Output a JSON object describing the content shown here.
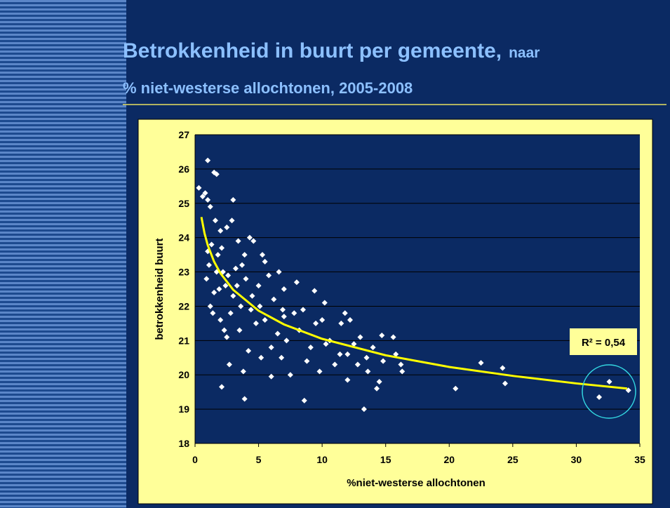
{
  "chart_data": {
    "type": "scatter",
    "title": "Betrokkenheid in buurt per gemeente,",
    "title_suffix": "naar",
    "subtitle": "% niet-westerse allochtonen, 2005-2008",
    "x_label": "%niet-westerse allochtonen",
    "y_label": "betrokkenheid buurt",
    "annotation": "R² = 0,54",
    "xlim": [
      0,
      35
    ],
    "xticks": [
      0,
      5,
      10,
      15,
      20,
      25,
      30,
      35
    ],
    "ylim": [
      18,
      27
    ],
    "yticks": [
      18,
      19,
      20,
      21,
      22,
      23,
      24,
      25,
      26,
      27
    ],
    "grid": true,
    "series": [
      {
        "color": "#ffffff",
        "x": [
          1.0,
          1.5,
          1.7,
          0.3,
          0.6,
          0.8,
          1.0,
          3.0,
          1.2,
          2.1,
          3.9,
          8.6,
          13.3,
          20.5,
          22.5,
          24.2,
          24.4,
          31.8,
          32.6,
          34.1,
          15.6,
          14.7,
          16.2,
          15.8,
          14.5,
          14.3,
          12.0,
          13.5,
          11.5,
          11.8,
          12.2,
          9.4,
          10.2,
          8.0,
          7.0,
          6.6,
          5.5,
          4.6,
          4.3,
          3.4,
          3.9,
          2.9,
          2.5,
          2.0,
          1.6,
          1.8,
          1.3,
          1.1,
          0.9,
          1.5,
          1.2,
          2.0,
          2.5,
          2.8,
          3.0,
          3.5,
          3.8,
          2.7,
          4.2,
          4.8,
          5.1,
          5.5,
          6.0,
          6.5,
          6.8,
          7.2,
          7.5,
          7.8,
          8.2,
          8.8,
          9.1,
          9.5,
          9.8,
          10.3,
          10.6,
          11.0,
          11.4,
          12.0,
          12.5,
          12.8,
          13.0,
          13.6,
          14.0,
          14.8,
          16.3,
          2.2,
          2.4,
          1.7,
          3.2,
          4.0,
          4.5,
          5.0,
          5.8,
          6.2,
          7.0,
          1.4,
          2.3,
          3.6,
          4.4,
          8.5,
          10.0,
          5.2,
          6.0,
          1.9,
          2.6,
          3.3,
          1.0,
          2.1,
          3.7,
          5.3,
          6.9
        ],
        "values": [
          26.25,
          25.9,
          25.85,
          25.45,
          25.2,
          25.3,
          25.1,
          25.1,
          24.9,
          19.65,
          19.3,
          19.25,
          19.0,
          19.6,
          20.35,
          20.2,
          19.75,
          19.35,
          19.8,
          19.55,
          21.1,
          21.15,
          20.3,
          20.6,
          19.8,
          19.6,
          19.85,
          20.5,
          21.5,
          21.8,
          21.6,
          22.45,
          22.1,
          22.7,
          22.5,
          23.0,
          23.3,
          23.9,
          24.0,
          23.9,
          23.5,
          24.5,
          24.3,
          24.2,
          24.5,
          23.5,
          23.8,
          23.2,
          22.8,
          22.4,
          22.0,
          21.6,
          21.1,
          21.8,
          22.3,
          21.3,
          20.1,
          20.3,
          20.7,
          21.5,
          22.0,
          21.6,
          20.8,
          21.2,
          20.5,
          21.0,
          20.0,
          21.8,
          21.3,
          20.4,
          20.8,
          21.5,
          20.1,
          20.9,
          21.0,
          20.3,
          20.6,
          20.6,
          20.9,
          20.3,
          21.1,
          20.1,
          20.8,
          20.4,
          20.1,
          23.0,
          22.6,
          23.0,
          23.1,
          22.8,
          22.3,
          22.6,
          22.9,
          22.2,
          21.7,
          21.8,
          21.3,
          22.0,
          21.9,
          21.9,
          21.6,
          20.5,
          19.95,
          22.5,
          22.9,
          22.6,
          23.6,
          23.7,
          23.2,
          23.5,
          21.9
        ]
      }
    ],
    "trendline": {
      "color": "#ffff00",
      "x": [
        0.5,
        0.75,
        1,
        1.5,
        2,
        3,
        5,
        7,
        10,
        15,
        20,
        25,
        30,
        34
      ],
      "values": [
        24.6,
        24.12,
        23.78,
        23.3,
        22.96,
        22.48,
        21.87,
        21.47,
        21.05,
        20.57,
        20.23,
        19.97,
        19.75,
        19.6
      ]
    }
  }
}
